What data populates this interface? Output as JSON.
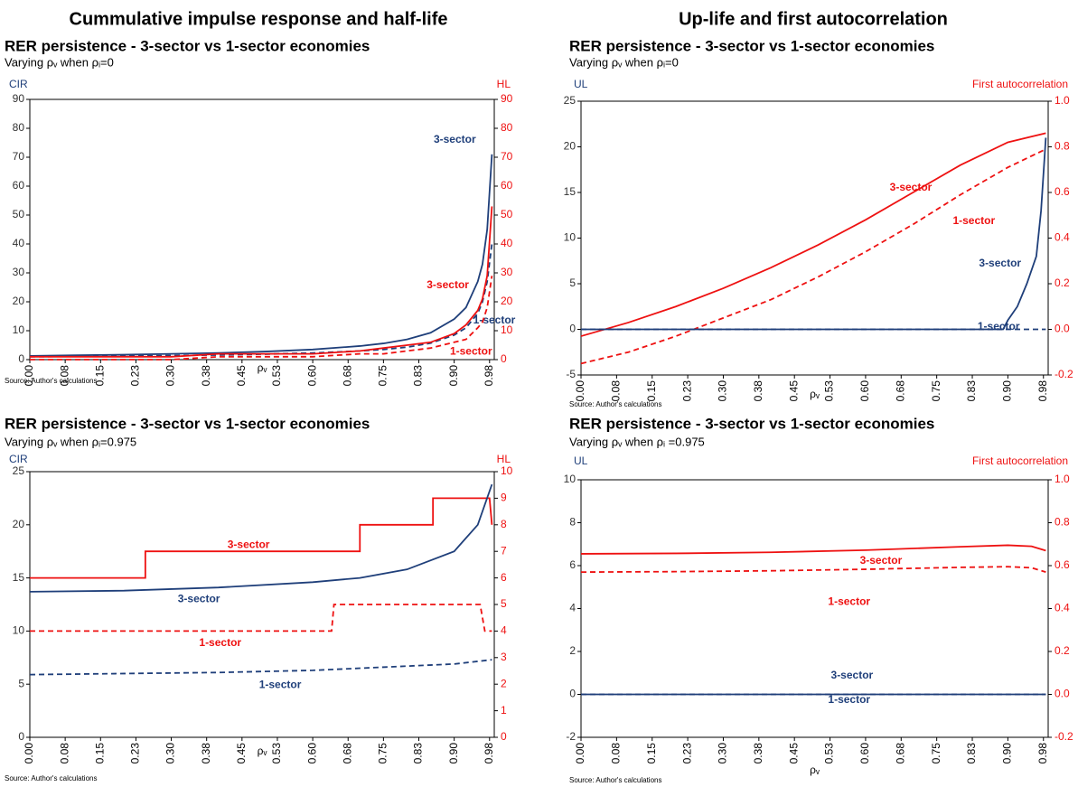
{
  "headings": [
    "Cummulative impulse response and half-life",
    "Up-life and first autocorrelation"
  ],
  "chart_data": [
    {
      "type": "line",
      "title": "RER persistence - 3-sector vs 1-sector economies",
      "subtitle": "Varying ρᵥ when ρᵢ=0",
      "y_label": "CIR",
      "y2_label": "HL",
      "x_label": "ρᵥ",
      "source": "Source: Author's calculations",
      "xlim": [
        0,
        0.985
      ],
      "xticks": [
        {
          "value": 0,
          "label": "0.00"
        },
        {
          "value": 0.075,
          "label": "0.08"
        },
        {
          "value": 0.15,
          "label": "0.15"
        },
        {
          "value": 0.225,
          "label": "0.23"
        },
        {
          "value": 0.3,
          "label": "0.30"
        },
        {
          "value": 0.375,
          "label": "0.38"
        },
        {
          "value": 0.45,
          "label": "0.45"
        },
        {
          "value": 0.525,
          "label": "0.53"
        },
        {
          "value": 0.6,
          "label": "0.60"
        },
        {
          "value": 0.675,
          "label": "0.68"
        },
        {
          "value": 0.75,
          "label": "0.75"
        },
        {
          "value": 0.825,
          "label": "0.83"
        },
        {
          "value": 0.9,
          "label": "0.90"
        },
        {
          "value": 0.975,
          "label": "0.98"
        }
      ],
      "ylim": [
        0,
        90
      ],
      "yticks": [
        0,
        10,
        20,
        30,
        40,
        50,
        60,
        70,
        80,
        90
      ],
      "y2lim": [
        0,
        90
      ],
      "y2ticks": [
        0,
        10,
        20,
        30,
        40,
        50,
        60,
        70,
        80,
        90
      ],
      "series": [
        {
          "name": "3-sector",
          "color": "#1f3f7a",
          "dashed": false,
          "axis": "y",
          "x": [
            0,
            0.1,
            0.2,
            0.3,
            0.4,
            0.5,
            0.6,
            0.7,
            0.75,
            0.8,
            0.85,
            0.9,
            0.925,
            0.95,
            0.96,
            0.97,
            0.98
          ],
          "values": [
            1.3,
            1.5,
            1.7,
            2.0,
            2.3,
            2.8,
            3.5,
            4.7,
            5.6,
            7,
            9.3,
            14,
            18,
            27,
            33,
            45,
            71
          ]
        },
        {
          "name": "1-sector",
          "color": "#1f3f7a",
          "dashed": true,
          "axis": "y",
          "x": [
            0,
            0.1,
            0.2,
            0.3,
            0.4,
            0.5,
            0.6,
            0.7,
            0.75,
            0.8,
            0.85,
            0.9,
            0.925,
            0.95,
            0.96,
            0.97,
            0.98
          ],
          "values": [
            1.0,
            1.1,
            1.25,
            1.4,
            1.6,
            1.9,
            2.3,
            3.0,
            3.5,
            4.3,
            5.7,
            8.5,
            11,
            16,
            20,
            27,
            40
          ]
        },
        {
          "name": "3-sector",
          "color": "#ee1111",
          "dashed": false,
          "axis": "y2",
          "x": [
            0,
            0.1,
            0.2,
            0.3,
            0.4,
            0.5,
            0.6,
            0.7,
            0.75,
            0.8,
            0.85,
            0.9,
            0.925,
            0.95,
            0.96,
            0.97,
            0.98
          ],
          "values": [
            1,
            1,
            1,
            1,
            2,
            2,
            2,
            3,
            4,
            5,
            6,
            9,
            12,
            17,
            21,
            29,
            53
          ]
        },
        {
          "name": "1-sector",
          "color": "#ee1111",
          "dashed": true,
          "axis": "y2",
          "x": [
            0,
            0.1,
            0.2,
            0.3,
            0.4,
            0.5,
            0.6,
            0.7,
            0.75,
            0.8,
            0.85,
            0.9,
            0.925,
            0.95,
            0.96,
            0.97,
            0.98
          ],
          "values": [
            0,
            0,
            0,
            0,
            1,
            1,
            1,
            2,
            2,
            3,
            4,
            6,
            7,
            11,
            13,
            18,
            29
          ]
        }
      ]
    },
    {
      "type": "line",
      "title": "RER persistence - 3-sector vs 1-sector economies",
      "subtitle": "Varying ρᵥ when ρᵢ=0",
      "y_label": "UL",
      "y2_label": "First autocorrelation",
      "x_label": "ρᵥ",
      "source": "Source: Author's calculations",
      "xlim": [
        0,
        0.985
      ],
      "xticks": [
        {
          "value": 0,
          "label": "0.00"
        },
        {
          "value": 0.075,
          "label": "0.08"
        },
        {
          "value": 0.15,
          "label": "0.15"
        },
        {
          "value": 0.225,
          "label": "0.23"
        },
        {
          "value": 0.3,
          "label": "0.30"
        },
        {
          "value": 0.375,
          "label": "0.38"
        },
        {
          "value": 0.45,
          "label": "0.45"
        },
        {
          "value": 0.525,
          "label": "0.53"
        },
        {
          "value": 0.6,
          "label": "0.60"
        },
        {
          "value": 0.675,
          "label": "0.68"
        },
        {
          "value": 0.75,
          "label": "0.75"
        },
        {
          "value": 0.825,
          "label": "0.83"
        },
        {
          "value": 0.9,
          "label": "0.90"
        },
        {
          "value": 0.975,
          "label": "0.98"
        }
      ],
      "ylim": [
        -5,
        25
      ],
      "yticks": [
        -5,
        0,
        5,
        10,
        15,
        20,
        25
      ],
      "y2lim": [
        -0.2,
        1.0
      ],
      "y2ticks": [
        -0.2,
        {
          "value": 0,
          "label": "0.0"
        },
        0.2,
        0.4,
        0.6,
        0.8,
        {
          "value": 1,
          "label": "1.0"
        }
      ],
      "series": [
        {
          "name": "3-sector",
          "color": "#ee1111",
          "dashed": false,
          "axis": "y2",
          "x": [
            0,
            0.1,
            0.2,
            0.3,
            0.4,
            0.5,
            0.6,
            0.7,
            0.8,
            0.9,
            0.98
          ],
          "values": [
            -0.03,
            0.03,
            0.1,
            0.18,
            0.27,
            0.37,
            0.48,
            0.6,
            0.72,
            0.82,
            0.86
          ]
        },
        {
          "name": "1-sector",
          "color": "#ee1111",
          "dashed": true,
          "axis": "y2",
          "x": [
            0,
            0.1,
            0.2,
            0.3,
            0.4,
            0.5,
            0.6,
            0.7,
            0.8,
            0.9,
            0.98
          ],
          "values": [
            -0.15,
            -0.1,
            -0.03,
            0.05,
            0.13,
            0.23,
            0.34,
            0.46,
            0.59,
            0.71,
            0.79
          ]
        },
        {
          "name": "3-sector",
          "color": "#1f3f7a",
          "dashed": false,
          "axis": "y",
          "x": [
            0,
            0.89,
            0.9,
            0.92,
            0.94,
            0.96,
            0.97,
            0.98
          ],
          "values": [
            0,
            0,
            1,
            2.5,
            5,
            8,
            13,
            21
          ]
        },
        {
          "name": "1-sector",
          "color": "#1f3f7a",
          "dashed": true,
          "axis": "y",
          "x": [
            0,
            0.98
          ],
          "values": [
            0,
            0
          ]
        }
      ]
    },
    {
      "type": "line",
      "title": "RER persistence - 3-sector vs 1-sector economies",
      "subtitle": "Varying ρᵥ when ρᵢ=0.975",
      "y_label": "CIR",
      "y2_label": "HL",
      "x_label": "ρᵥ",
      "source": "Source: Author's calculations",
      "xlim": [
        0,
        0.985
      ],
      "xticks": [
        {
          "value": 0,
          "label": "0.00"
        },
        {
          "value": 0.075,
          "label": "0.08"
        },
        {
          "value": 0.15,
          "label": "0.15"
        },
        {
          "value": 0.225,
          "label": "0.23"
        },
        {
          "value": 0.3,
          "label": "0.30"
        },
        {
          "value": 0.375,
          "label": "0.38"
        },
        {
          "value": 0.45,
          "label": "0.45"
        },
        {
          "value": 0.525,
          "label": "0.53"
        },
        {
          "value": 0.6,
          "label": "0.60"
        },
        {
          "value": 0.675,
          "label": "0.68"
        },
        {
          "value": 0.75,
          "label": "0.75"
        },
        {
          "value": 0.825,
          "label": "0.83"
        },
        {
          "value": 0.9,
          "label": "0.90"
        },
        {
          "value": 0.975,
          "label": "0.98"
        }
      ],
      "ylim": [
        0,
        25
      ],
      "yticks": [
        0,
        5,
        10,
        15,
        20,
        25
      ],
      "y2lim": [
        0,
        10
      ],
      "y2ticks": [
        0,
        1,
        2,
        3,
        4,
        5,
        6,
        7,
        8,
        9,
        10
      ],
      "series": [
        {
          "name": "3-sector",
          "color": "#ee1111",
          "dashed": false,
          "axis": "y2",
          "x": [
            0,
            0.245,
            0.245,
            0.7,
            0.7,
            0.855,
            0.855,
            0.975,
            0.98
          ],
          "values": [
            6,
            6,
            7,
            7,
            8,
            8,
            9,
            9,
            8
          ]
        },
        {
          "name": "3-sector",
          "color": "#1f3f7a",
          "dashed": false,
          "axis": "y",
          "x": [
            0,
            0.2,
            0.4,
            0.6,
            0.7,
            0.8,
            0.9,
            0.95,
            0.98
          ],
          "values": [
            13.7,
            13.8,
            14.1,
            14.6,
            15.0,
            15.8,
            17.5,
            20,
            23.8
          ]
        },
        {
          "name": "1-sector",
          "color": "#ee1111",
          "dashed": true,
          "axis": "y2",
          "x": [
            0,
            0.64,
            0.645,
            0.955,
            0.965,
            0.98
          ],
          "values": [
            4,
            4,
            5,
            5,
            4,
            4
          ]
        },
        {
          "name": "1-sector",
          "color": "#1f3f7a",
          "dashed": true,
          "axis": "y",
          "x": [
            0,
            0.2,
            0.4,
            0.6,
            0.8,
            0.9,
            0.98
          ],
          "values": [
            5.9,
            6.0,
            6.1,
            6.3,
            6.7,
            6.9,
            7.3
          ]
        }
      ]
    },
    {
      "type": "line",
      "title": "RER persistence - 3-sector vs 1-sector economies",
      "subtitle": "Varying ρᵥ when ρᵢ =0.975",
      "y_label": "UL",
      "y2_label": "First autocorrelation",
      "x_label": "ρᵥ",
      "source": "Source: Author's calculations",
      "xlim": [
        0,
        0.985
      ],
      "xticks": [
        {
          "value": 0,
          "label": "0.00"
        },
        {
          "value": 0.075,
          "label": "0.08"
        },
        {
          "value": 0.15,
          "label": "0.15"
        },
        {
          "value": 0.225,
          "label": "0.23"
        },
        {
          "value": 0.3,
          "label": "0.30"
        },
        {
          "value": 0.375,
          "label": "0.38"
        },
        {
          "value": 0.45,
          "label": "0.45"
        },
        {
          "value": 0.525,
          "label": "0.53"
        },
        {
          "value": 0.6,
          "label": "0.60"
        },
        {
          "value": 0.675,
          "label": "0.68"
        },
        {
          "value": 0.75,
          "label": "0.75"
        },
        {
          "value": 0.825,
          "label": "0.83"
        },
        {
          "value": 0.9,
          "label": "0.90"
        },
        {
          "value": 0.975,
          "label": "0.98"
        }
      ],
      "ylim": [
        -2,
        10
      ],
      "yticks": [
        -2,
        0,
        2,
        4,
        6,
        8,
        10
      ],
      "y2lim": [
        -0.2,
        1.0
      ],
      "y2ticks": [
        -0.2,
        {
          "value": 0,
          "label": "0.0"
        },
        0.2,
        0.4,
        0.6,
        0.8,
        {
          "value": 1,
          "label": "1.0"
        }
      ],
      "series": [
        {
          "name": "3-sector",
          "color": "#ee1111",
          "dashed": false,
          "axis": "y2",
          "x": [
            0,
            0.2,
            0.4,
            0.6,
            0.8,
            0.9,
            0.95,
            0.98
          ],
          "values": [
            0.655,
            0.657,
            0.662,
            0.672,
            0.688,
            0.695,
            0.69,
            0.67
          ]
        },
        {
          "name": "1-sector",
          "color": "#ee1111",
          "dashed": true,
          "axis": "y2",
          "x": [
            0,
            0.2,
            0.4,
            0.6,
            0.8,
            0.9,
            0.95,
            0.98
          ],
          "values": [
            0.57,
            0.572,
            0.576,
            0.583,
            0.592,
            0.595,
            0.59,
            0.57
          ]
        },
        {
          "name": "3-sector",
          "color": "#1f3f7a",
          "dashed": false,
          "axis": "y",
          "x": [
            0,
            0.98
          ],
          "values": [
            0,
            0
          ]
        },
        {
          "name": "1-sector",
          "color": "#1f3f7a",
          "dashed": true,
          "axis": "y",
          "x": [
            0,
            0.98
          ],
          "values": [
            0,
            0
          ]
        }
      ]
    }
  ]
}
